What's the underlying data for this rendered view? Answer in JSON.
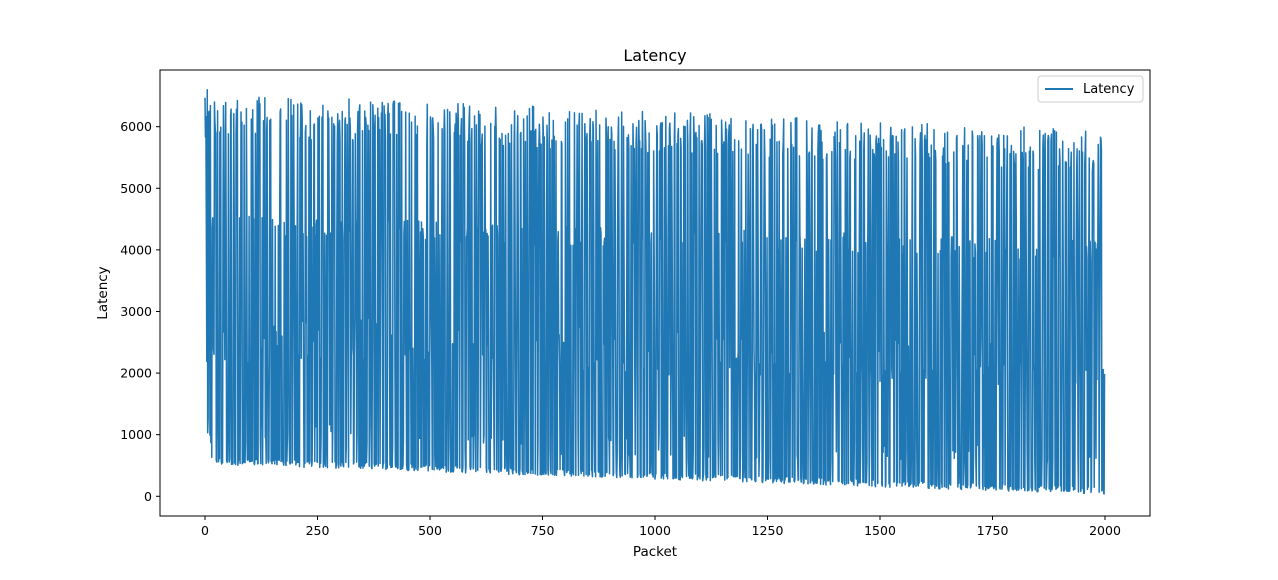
{
  "chart_data": {
    "type": "line",
    "title": "Latency",
    "xlabel": "Packet",
    "ylabel": "Latency",
    "xlim": [
      -100,
      2100
    ],
    "ylim": [
      -320,
      6920
    ],
    "x_ticks": [
      0,
      250,
      500,
      750,
      1000,
      1250,
      1500,
      1750,
      2000
    ],
    "y_ticks": [
      0,
      1000,
      2000,
      3000,
      4000,
      5000,
      6000
    ],
    "grid": false,
    "legend": {
      "placement": "top-right",
      "entries": [
        "Latency"
      ]
    },
    "series": [
      {
        "name": "Latency",
        "color": "#1f77b4",
        "n_points": 2000,
        "pattern": {
          "description": "sawtooth-like oscillation between high and low latency levels, both slowly decreasing with packet index",
          "high_start": 6550,
          "high_end": 5950,
          "mid_high_start": 4580,
          "mid_high_end": 4150,
          "mid_start": 2480,
          "mid_end": 2050,
          "low_start": 520,
          "low_end": 30
        }
      }
    ]
  }
}
